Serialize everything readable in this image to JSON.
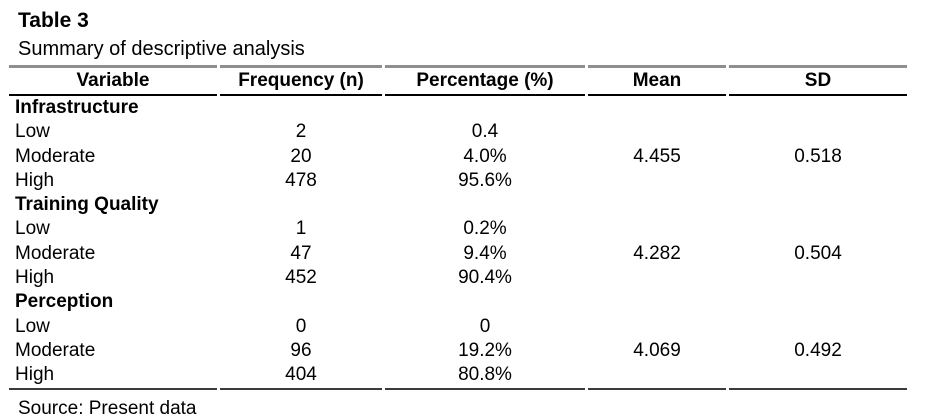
{
  "title": "Table 3",
  "subtitle": "Summary of descriptive analysis",
  "source": "Source: Present data",
  "colors": {
    "background": "#ffffff",
    "text": "#000000",
    "rule_top": "#8f8f8f",
    "rule_header": "#000000",
    "rule_bottom": "#3b3b3b"
  },
  "table": {
    "columns": [
      "Variable",
      "Frequency (n)",
      "Percentage (%)",
      "Mean",
      "SD"
    ],
    "rows": [
      {
        "label": "Infrastructure",
        "section": true,
        "freq": "",
        "pct": "",
        "mean": "",
        "sd": ""
      },
      {
        "label": "Low",
        "section": false,
        "freq": "2",
        "pct": "0.4",
        "mean": "",
        "sd": ""
      },
      {
        "label": "Moderate",
        "section": false,
        "freq": "20",
        "pct": "4.0%",
        "mean": "4.455",
        "sd": "0.518"
      },
      {
        "label": "High",
        "section": false,
        "freq": "478",
        "pct": "95.6%",
        "mean": "",
        "sd": ""
      },
      {
        "label": "Training Quality",
        "section": true,
        "freq": "",
        "pct": "",
        "mean": "",
        "sd": ""
      },
      {
        "label": "Low",
        "section": false,
        "freq": "1",
        "pct": "0.2%",
        "mean": "",
        "sd": ""
      },
      {
        "label": "Moderate",
        "section": false,
        "freq": "47",
        "pct": "9.4%",
        "mean": "4.282",
        "sd": "0.504"
      },
      {
        "label": "High",
        "section": false,
        "freq": "452",
        "pct": "90.4%",
        "mean": "",
        "sd": ""
      },
      {
        "label": "Perception",
        "section": true,
        "freq": "",
        "pct": "",
        "mean": "",
        "sd": ""
      },
      {
        "label": "Low",
        "section": false,
        "freq": "0",
        "pct": "0",
        "mean": "",
        "sd": ""
      },
      {
        "label": "Moderate",
        "section": false,
        "freq": "96",
        "pct": "19.2%",
        "mean": "4.069",
        "sd": "0.492"
      },
      {
        "label": "High",
        "section": false,
        "freq": "404",
        "pct": "80.8%",
        "mean": "",
        "sd": ""
      }
    ]
  }
}
